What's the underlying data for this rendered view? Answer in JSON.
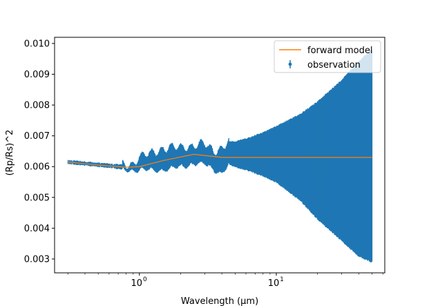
{
  "chart_data": {
    "type": "line",
    "title": "",
    "xlabel": "Wavelength (μm)",
    "ylabel": "(Rp/Rs)^2",
    "x_scale": "log",
    "xlim": [
      0.24,
      62
    ],
    "ylim": [
      0.00255,
      0.0102
    ],
    "x_ticks": [
      {
        "value": 1,
        "base": "10",
        "exp": "0"
      },
      {
        "value": 10,
        "base": "10",
        "exp": "1"
      }
    ],
    "y_ticks": [
      0.003,
      0.004,
      0.005,
      0.006,
      0.007,
      0.008,
      0.009,
      0.01
    ],
    "y_tick_labels": [
      "0.003",
      "0.004",
      "0.005",
      "0.006",
      "0.007",
      "0.008",
      "0.009",
      "0.010"
    ],
    "legend": {
      "position": "top-right",
      "entries": [
        {
          "label": "forward model",
          "color": "#ff7f0e",
          "marker": "line"
        },
        {
          "label": "observation",
          "color": "#1f77b4",
          "marker": "errorbar"
        }
      ]
    },
    "series": [
      {
        "name": "forward model",
        "color": "#ff7f0e",
        "x": [
          0.3,
          0.5,
          0.8,
          1.0,
          1.5,
          2.5,
          4.0,
          10.0,
          30.0,
          50.0
        ],
        "y": [
          0.00615,
          0.00605,
          0.00598,
          0.006,
          0.0062,
          0.0064,
          0.0063,
          0.0063,
          0.0063,
          0.0063
        ]
      },
      {
        "name": "observation",
        "color": "#1f77b4",
        "x": [
          0.3,
          0.4,
          0.5,
          0.6,
          0.7,
          0.8,
          0.9,
          1.0,
          1.2,
          1.5,
          2.0,
          2.5,
          3.0,
          3.5,
          4.0,
          4.5,
          5.0,
          6.0,
          8.0,
          10.0,
          15.0,
          20.0,
          30.0,
          40.0,
          50.0
        ],
        "y": [
          0.00615,
          0.0061,
          0.00606,
          0.00603,
          0.006,
          0.00598,
          0.00598,
          0.006,
          0.0061,
          0.0062,
          0.0063,
          0.0064,
          0.0064,
          0.0062,
          0.0062,
          0.0064,
          0.0064,
          0.0064,
          0.0064,
          0.0064,
          0.0064,
          0.0064,
          0.0064,
          0.0064,
          0.0063
        ],
        "y_upper": [
          0.00619,
          0.00615,
          0.00611,
          0.00608,
          0.00606,
          0.00605,
          0.0061,
          0.0063,
          0.0064,
          0.0066,
          0.0066,
          0.0067,
          0.0067,
          0.0065,
          0.0066,
          0.0068,
          0.0068,
          0.0069,
          0.0071,
          0.0073,
          0.0077,
          0.0081,
          0.0088,
          0.0094,
          0.0098
        ],
        "y_lower": [
          0.00611,
          0.00605,
          0.00601,
          0.00598,
          0.00594,
          0.00591,
          0.00588,
          0.0059,
          0.0059,
          0.0059,
          0.006,
          0.0061,
          0.0061,
          0.0059,
          0.0058,
          0.0061,
          0.006,
          0.0059,
          0.0057,
          0.0055,
          0.0049,
          0.0043,
          0.0036,
          0.0031,
          0.0029
        ]
      }
    ]
  }
}
